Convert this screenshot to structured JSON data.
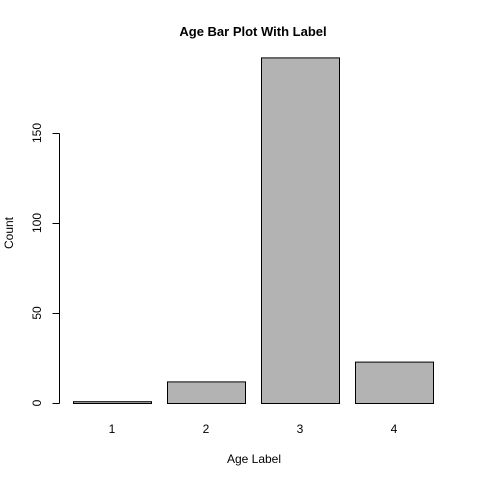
{
  "chart_data": {
    "type": "bar",
    "title": "Age Bar Plot With Label",
    "xlabel": "Age Label",
    "ylabel": "Count",
    "categories": [
      "1",
      "2",
      "3",
      "4"
    ],
    "values": [
      1,
      12,
      192,
      23
    ],
    "ylim": [
      0,
      192
    ],
    "yticks": [
      0,
      50,
      100,
      150
    ],
    "grid": false,
    "bar_color": "#b3b3b3"
  }
}
